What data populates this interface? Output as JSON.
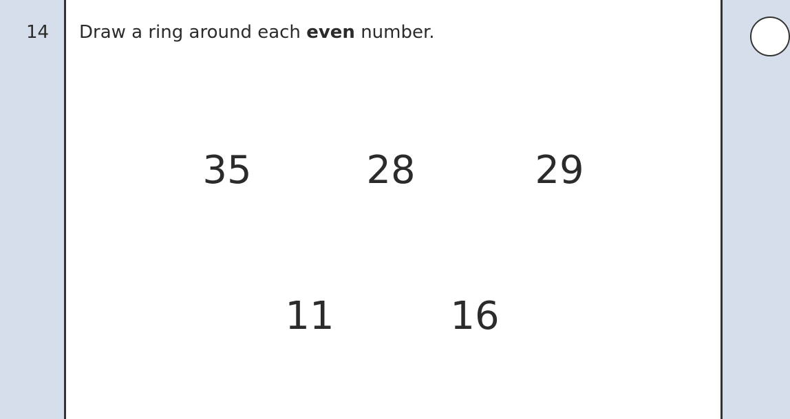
{
  "question": {
    "number": "14",
    "prompt_start": "Draw a ring around each",
    "prompt_bold": "even",
    "prompt_end": "number."
  },
  "numbers": [
    {
      "row": 1,
      "value": 35
    },
    {
      "row": 1,
      "value": 28
    },
    {
      "row": 1,
      "value": 29
    },
    {
      "row": 2,
      "value": 11
    },
    {
      "row": 2,
      "value": 16
    }
  ]
}
